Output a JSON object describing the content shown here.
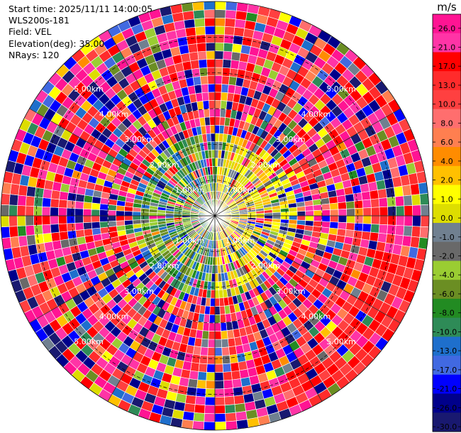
{
  "header": {
    "start_time": "Start time: 2025/11/11 14:00:05",
    "instrument": "WLS200s-181",
    "field": "Field: VEL",
    "elevation": "Elevation(deg): 35.00",
    "nrays": "NRays: 120"
  },
  "chart_data": {
    "type": "ppi_polar_heatmap",
    "field": "VEL",
    "units": "m/s",
    "elevation_deg": 35.0,
    "n_rays": 120,
    "range_km": [
      0,
      6
    ],
    "range_ring_labels": [
      "1.00km",
      "2.00km",
      "3.00km",
      "4.00km",
      "5.00km"
    ],
    "range_rings_km": [
      1,
      2,
      3,
      4,
      5
    ],
    "colorbar": {
      "label": "m/s",
      "ticks": [
        "26.0",
        "21.0",
        "17.0",
        "13.0",
        "10.0",
        "8.0",
        "6.0",
        "4.0",
        "2.0",
        "1.0",
        "0.0",
        "-1.0",
        "-2.0",
        "-4.0",
        "-6.0",
        "-8.0",
        "-10.0",
        "-13.0",
        "-17.0",
        "-21.0",
        "-26.0",
        "-30.0"
      ],
      "colors": [
        "#ff1493",
        "#ff34a6",
        "#ff0000",
        "#ff2b2b",
        "#ff4040",
        "#ff6e6e",
        "#ff7f50",
        "#ff8c00",
        "#ffc000",
        "#ffff00",
        "#dddd00",
        "#708090",
        "#696969",
        "#9acd32",
        "#6b8e23",
        "#228b22",
        "#2e8b57",
        "#1e6fcc",
        "#4169e1",
        "#0000ff",
        "#00008b",
        "#191970"
      ]
    },
    "grid": true
  }
}
